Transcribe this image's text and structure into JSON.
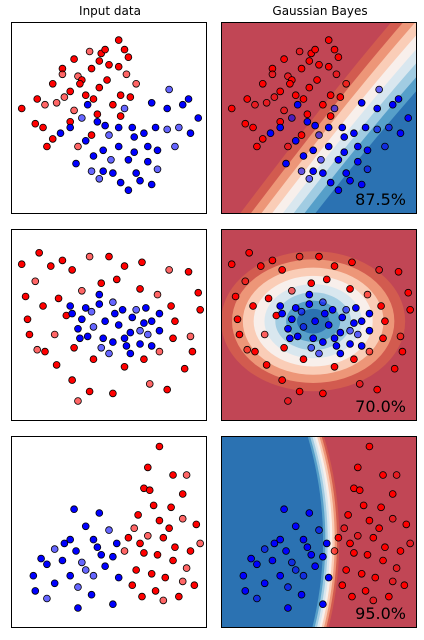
{
  "figure": {
    "column_titles": [
      "Input data",
      "Gaussian Bayes"
    ]
  },
  "colors": {
    "red_point": "#ff0000",
    "blue_point": "#0000ff",
    "red_region_dark": "#b2182b",
    "blue_region_dark": "#2166ac",
    "point_edge": "#000000"
  },
  "chart_data": [
    {
      "type": "scatter",
      "dataset": 1,
      "xlim": [
        0,
        1
      ],
      "ylim": [
        0,
        1
      ],
      "classifier": "Gaussian Bayes",
      "score_label": "87.5%",
      "red": [
        [
          0.46,
          0.84
        ],
        [
          0.55,
          0.91
        ],
        [
          0.41,
          0.76
        ],
        [
          0.34,
          0.72
        ],
        [
          0.26,
          0.76
        ],
        [
          0.3,
          0.64
        ],
        [
          0.21,
          0.68
        ],
        [
          0.17,
          0.57
        ],
        [
          0.12,
          0.47
        ],
        [
          0.16,
          0.45
        ],
        [
          0.21,
          0.39
        ],
        [
          0.32,
          0.54
        ],
        [
          0.42,
          0.6
        ],
        [
          0.49,
          0.7
        ],
        [
          0.56,
          0.62
        ],
        [
          0.59,
          0.73
        ],
        [
          0.5,
          0.78
        ],
        [
          0.45,
          0.66
        ],
        [
          0.38,
          0.62
        ],
        [
          0.27,
          0.61
        ],
        [
          0.36,
          0.7
        ],
        [
          0.55,
          0.77
        ],
        [
          0.6,
          0.82
        ],
        [
          0.64,
          0.68
        ],
        [
          0.52,
          0.57
        ],
        [
          0.44,
          0.52
        ],
        [
          0.3,
          0.48
        ],
        [
          0.23,
          0.58
        ],
        [
          0.13,
          0.6
        ],
        [
          0.05,
          0.55
        ],
        [
          0.18,
          0.35
        ],
        [
          0.34,
          0.35
        ],
        [
          0.41,
          0.41
        ],
        [
          0.56,
          0.51
        ],
        [
          0.61,
          0.61
        ],
        [
          0.4,
          0.85
        ],
        [
          0.32,
          0.81
        ],
        [
          0.48,
          0.86
        ],
        [
          0.58,
          0.86
        ],
        [
          0.26,
          0.73
        ],
        [
          0.35,
          0.68
        ],
        [
          0.45,
          0.8
        ]
      ],
      "blue": [
        [
          0.72,
          0.58
        ],
        [
          0.8,
          0.55
        ],
        [
          0.88,
          0.57
        ],
        [
          0.86,
          0.45
        ],
        [
          0.74,
          0.45
        ],
        [
          0.62,
          0.45
        ],
        [
          0.55,
          0.45
        ],
        [
          0.5,
          0.41
        ],
        [
          0.44,
          0.48
        ],
        [
          0.38,
          0.38
        ],
        [
          0.42,
          0.3
        ],
        [
          0.51,
          0.28
        ],
        [
          0.6,
          0.28
        ],
        [
          0.63,
          0.32
        ],
        [
          0.7,
          0.27
        ],
        [
          0.75,
          0.23
        ],
        [
          0.64,
          0.21
        ],
        [
          0.52,
          0.21
        ],
        [
          0.47,
          0.22
        ],
        [
          0.41,
          0.22
        ],
        [
          0.56,
          0.16
        ],
        [
          0.66,
          0.17
        ],
        [
          0.75,
          0.33
        ],
        [
          0.84,
          0.35
        ],
        [
          0.92,
          0.42
        ],
        [
          0.96,
          0.5
        ],
        [
          0.91,
          0.6
        ],
        [
          0.81,
          0.65
        ],
        [
          0.7,
          0.35
        ],
        [
          0.55,
          0.35
        ],
        [
          0.47,
          0.33
        ],
        [
          0.36,
          0.5
        ],
        [
          0.3,
          0.45
        ],
        [
          0.25,
          0.42
        ],
        [
          0.33,
          0.26
        ],
        [
          0.45,
          0.18
        ],
        [
          0.6,
          0.12
        ],
        [
          0.72,
          0.15
        ],
        [
          0.68,
          0.42
        ],
        [
          0.58,
          0.55
        ],
        [
          0.48,
          0.46
        ],
        [
          0.39,
          0.57
        ],
        [
          0.63,
          0.4
        ],
        [
          0.8,
          0.44
        ]
      ]
    },
    {
      "type": "scatter",
      "dataset": 2,
      "xlim": [
        0,
        1
      ],
      "ylim": [
        0,
        1
      ],
      "classifier": "Gaussian Bayes",
      "score_label": "70.0%",
      "red": [
        [
          0.14,
          0.88
        ],
        [
          0.2,
          0.81
        ],
        [
          0.31,
          0.79
        ],
        [
          0.4,
          0.86
        ],
        [
          0.5,
          0.86
        ],
        [
          0.58,
          0.81
        ],
        [
          0.67,
          0.83
        ],
        [
          0.81,
          0.79
        ],
        [
          0.91,
          0.78
        ],
        [
          0.96,
          0.67
        ],
        [
          0.97,
          0.58
        ],
        [
          0.92,
          0.44
        ],
        [
          0.93,
          0.36
        ],
        [
          0.89,
          0.27
        ],
        [
          0.8,
          0.16
        ],
        [
          0.71,
          0.19
        ],
        [
          0.58,
          0.28
        ],
        [
          0.52,
          0.14
        ],
        [
          0.4,
          0.15
        ],
        [
          0.34,
          0.1
        ],
        [
          0.31,
          0.21
        ],
        [
          0.23,
          0.29
        ],
        [
          0.17,
          0.36
        ],
        [
          0.13,
          0.37
        ],
        [
          0.09,
          0.45
        ],
        [
          0.08,
          0.53
        ],
        [
          0.07,
          0.65
        ],
        [
          0.12,
          0.73
        ],
        [
          0.05,
          0.82
        ],
        [
          0.16,
          0.6
        ],
        [
          0.24,
          0.64
        ],
        [
          0.36,
          0.68
        ],
        [
          0.46,
          0.72
        ],
        [
          0.54,
          0.74
        ],
        [
          0.66,
          0.69
        ],
        [
          0.75,
          0.66
        ],
        [
          0.82,
          0.6
        ],
        [
          0.84,
          0.52
        ],
        [
          0.83,
          0.43
        ],
        [
          0.76,
          0.36
        ],
        [
          0.68,
          0.32
        ],
        [
          0.42,
          0.32
        ],
        [
          0.32,
          0.38
        ],
        [
          0.22,
          0.45
        ],
        [
          0.28,
          0.55
        ],
        [
          0.26,
          0.84
        ]
      ],
      "blue": [
        [
          0.31,
          0.56
        ],
        [
          0.38,
          0.59
        ],
        [
          0.45,
          0.61
        ],
        [
          0.52,
          0.62
        ],
        [
          0.57,
          0.58
        ],
        [
          0.62,
          0.54
        ],
        [
          0.68,
          0.51
        ],
        [
          0.7,
          0.45
        ],
        [
          0.66,
          0.4
        ],
        [
          0.59,
          0.39
        ],
        [
          0.52,
          0.41
        ],
        [
          0.46,
          0.38
        ],
        [
          0.39,
          0.44
        ],
        [
          0.34,
          0.48
        ],
        [
          0.36,
          0.53
        ],
        [
          0.42,
          0.49
        ],
        [
          0.48,
          0.52
        ],
        [
          0.55,
          0.5
        ],
        [
          0.61,
          0.46
        ],
        [
          0.66,
          0.47
        ],
        [
          0.72,
          0.52
        ],
        [
          0.76,
          0.56
        ],
        [
          0.35,
          0.43
        ],
        [
          0.41,
          0.57
        ],
        [
          0.47,
          0.43
        ],
        [
          0.53,
          0.56
        ],
        [
          0.58,
          0.43
        ],
        [
          0.64,
          0.58
        ],
        [
          0.72,
          0.39
        ],
        [
          0.3,
          0.6
        ],
        [
          0.45,
          0.66
        ],
        [
          0.5,
          0.35
        ],
        [
          0.61,
          0.35
        ],
        [
          0.69,
          0.59
        ],
        [
          0.76,
          0.47
        ]
      ]
    },
    {
      "type": "scatter",
      "dataset": 3,
      "xlim": [
        0,
        1
      ],
      "ylim": [
        0,
        1
      ],
      "classifier": "Gaussian Bayes",
      "score_label": "95.0%",
      "red": [
        [
          0.76,
          0.95
        ],
        [
          0.7,
          0.84
        ],
        [
          0.83,
          0.8
        ],
        [
          0.9,
          0.8
        ],
        [
          0.68,
          0.73
        ],
        [
          0.73,
          0.64
        ],
        [
          0.82,
          0.63
        ],
        [
          0.88,
          0.57
        ],
        [
          0.95,
          0.54
        ],
        [
          0.76,
          0.56
        ],
        [
          0.65,
          0.59
        ],
        [
          0.7,
          0.48
        ],
        [
          0.78,
          0.47
        ],
        [
          0.84,
          0.42
        ],
        [
          0.92,
          0.4
        ],
        [
          0.97,
          0.44
        ],
        [
          0.68,
          0.39
        ],
        [
          0.75,
          0.38
        ],
        [
          0.83,
          0.35
        ],
        [
          0.9,
          0.31
        ],
        [
          0.64,
          0.3
        ],
        [
          0.72,
          0.28
        ],
        [
          0.79,
          0.26
        ],
        [
          0.88,
          0.24
        ],
        [
          0.94,
          0.22
        ],
        [
          0.62,
          0.22
        ],
        [
          0.67,
          0.16
        ],
        [
          0.78,
          0.14
        ],
        [
          0.86,
          0.16
        ],
        [
          0.6,
          0.47
        ],
        [
          0.71,
          0.72
        ],
        [
          0.58,
          0.4
        ],
        [
          0.66,
          0.44
        ],
        [
          0.81,
          0.52
        ],
        [
          0.74,
          0.19
        ],
        [
          0.63,
          0.52
        ],
        [
          0.88,
          0.7
        ]
      ],
      "blue": [
        [
          0.32,
          0.62
        ],
        [
          0.45,
          0.6
        ],
        [
          0.38,
          0.53
        ],
        [
          0.5,
          0.51
        ],
        [
          0.3,
          0.46
        ],
        [
          0.42,
          0.46
        ],
        [
          0.54,
          0.44
        ],
        [
          0.22,
          0.41
        ],
        [
          0.33,
          0.4
        ],
        [
          0.46,
          0.38
        ],
        [
          0.26,
          0.35
        ],
        [
          0.36,
          0.34
        ],
        [
          0.48,
          0.32
        ],
        [
          0.18,
          0.33
        ],
        [
          0.3,
          0.27
        ],
        [
          0.42,
          0.27
        ],
        [
          0.55,
          0.26
        ],
        [
          0.11,
          0.27
        ],
        [
          0.22,
          0.23
        ],
        [
          0.34,
          0.21
        ],
        [
          0.12,
          0.19
        ],
        [
          0.41,
          0.17
        ],
        [
          0.34,
          0.1
        ],
        [
          0.18,
          0.15
        ],
        [
          0.52,
          0.12
        ],
        [
          0.27,
          0.44
        ],
        [
          0.44,
          0.42
        ],
        [
          0.38,
          0.3
        ],
        [
          0.52,
          0.37
        ],
        [
          0.15,
          0.36
        ]
      ]
    }
  ]
}
